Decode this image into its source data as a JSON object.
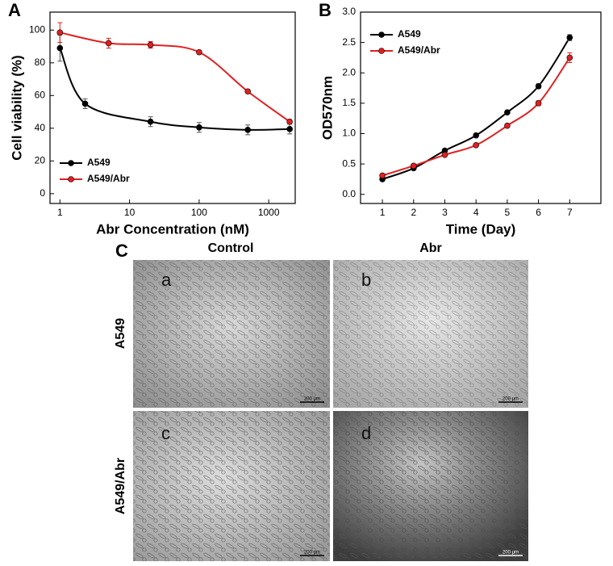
{
  "chart_data": [
    {
      "type": "line",
      "label": "A",
      "x_label": "Abr Concentration (nM)",
      "y_label": "Cell viability (%)",
      "xscale": "log",
      "xlim": [
        0.72,
        2400
      ],
      "xticks": [
        1,
        10,
        100,
        1000
      ],
      "ylim": [
        -6,
        111
      ],
      "yticks": [
        0,
        20,
        40,
        60,
        80,
        100
      ],
      "legend": "lower left",
      "series": [
        {
          "name": "A549",
          "color": "#000000",
          "x": [
            1,
            2.3,
            20,
            100,
            500,
            2000
          ],
          "values": [
            89,
            55,
            44,
            40.5,
            39,
            39.5
          ],
          "errors": [
            8,
            3,
            3,
            3,
            3,
            3
          ]
        },
        {
          "name": "A549/Abr",
          "color": "#e02020",
          "x": [
            1,
            5,
            20,
            100,
            500,
            2000
          ],
          "values": [
            98.5,
            92,
            91,
            86.5,
            62.5,
            44
          ],
          "errors": [
            6,
            3,
            2,
            1,
            1,
            1
          ]
        }
      ]
    },
    {
      "type": "line",
      "label": "B",
      "x_label": "Time (Day)",
      "y_label": "OD570nm",
      "xscale": "linear",
      "xlim": [
        0.3,
        8
      ],
      "xticks": [
        1,
        2,
        3,
        4,
        5,
        6,
        7
      ],
      "ylim": [
        -0.15,
        3.0
      ],
      "yticks": [
        {
          "value": 0,
          "label": "0.0"
        },
        0.5,
        {
          "value": 1,
          "label": "1.0"
        },
        1.5,
        {
          "value": 2,
          "label": "2.0"
        },
        2.5,
        {
          "value": 3,
          "label": "3.0"
        }
      ],
      "legend": "upper left",
      "series": [
        {
          "name": "A549",
          "color": "#000000",
          "x": [
            1,
            2,
            3,
            4,
            5,
            6,
            7
          ],
          "values": [
            0.25,
            0.43,
            0.72,
            0.97,
            1.35,
            1.78,
            2.58
          ],
          "errors": [
            0.02,
            0.02,
            0.02,
            0.02,
            0.02,
            0.04,
            0.05
          ]
        },
        {
          "name": "A549/Abr",
          "color": "#e02020",
          "x": [
            1,
            2,
            3,
            4,
            5,
            6,
            7
          ],
          "values": [
            0.31,
            0.47,
            0.65,
            0.81,
            1.13,
            1.5,
            2.25
          ],
          "errors": [
            0.02,
            0.02,
            0.02,
            0.02,
            0.02,
            0.04,
            0.08
          ]
        }
      ]
    }
  ],
  "panel_c": {
    "label": "C",
    "columns": [
      "Control",
      "Abr"
    ],
    "rows": [
      "A549",
      "A549/Abr"
    ],
    "panels": [
      "a",
      "b",
      "c",
      "d"
    ],
    "scale_bar": "200 μm"
  }
}
